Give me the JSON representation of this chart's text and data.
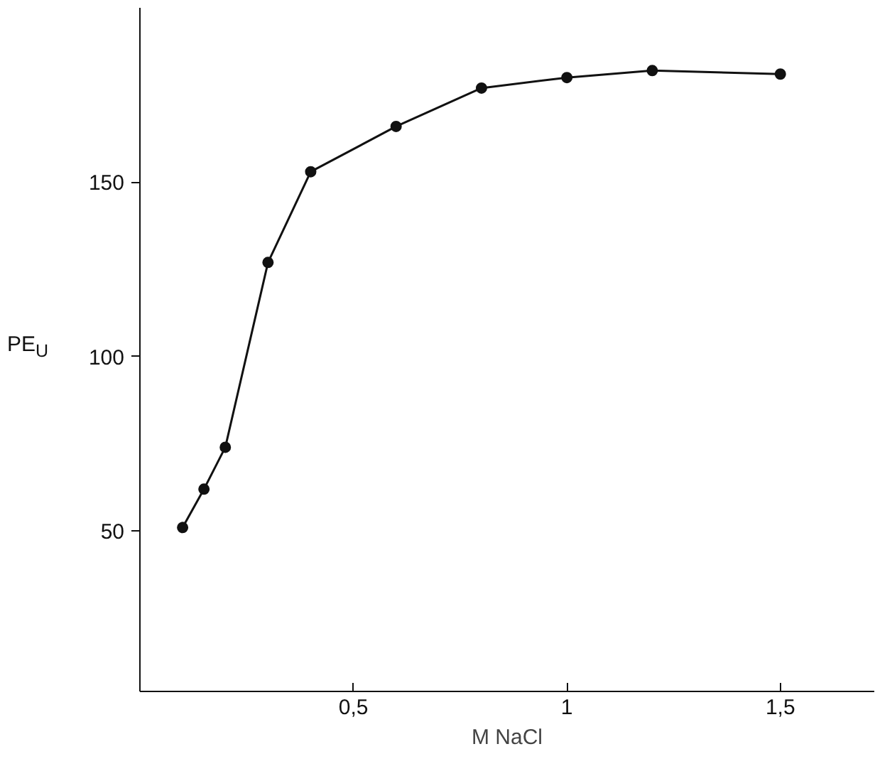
{
  "chart_data": {
    "type": "line",
    "xlabel": "M NaCl",
    "ylabel": "PE$_{U}$",
    "x": [
      0.1,
      0.15,
      0.2,
      0.3,
      0.4,
      0.6,
      0.8,
      1.0,
      1.2,
      1.5
    ],
    "series": [
      {
        "color": "#111111",
        "values": [
          51,
          62,
          74,
          127,
          153,
          166,
          177,
          180,
          182,
          181
        ]
      }
    ],
    "xlim": [
      0,
      1.72
    ],
    "ylim": [
      4,
      200
    ],
    "xticks": [
      {
        "value": 0.5,
        "label": "0,5"
      },
      1,
      {
        "value": 1.5,
        "label": "1,5"
      }
    ],
    "yticks": [
      50,
      100,
      150
    ],
    "marker": "circle",
    "line_style": "solid",
    "grid": false
  }
}
